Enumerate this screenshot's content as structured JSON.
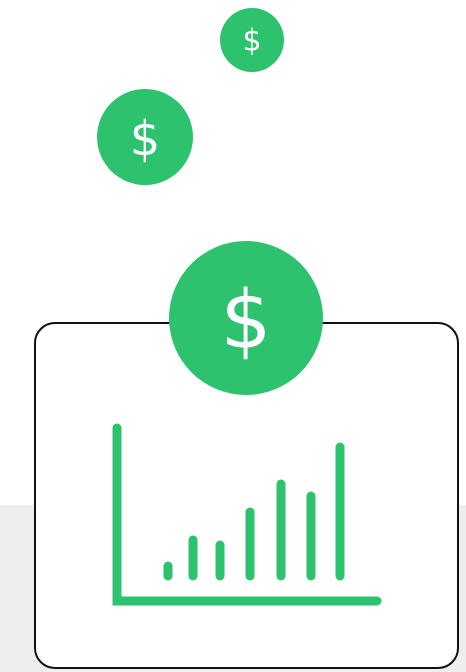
{
  "coins": [
    {
      "label": "$"
    },
    {
      "label": "$"
    },
    {
      "label": "$"
    }
  ]
}
